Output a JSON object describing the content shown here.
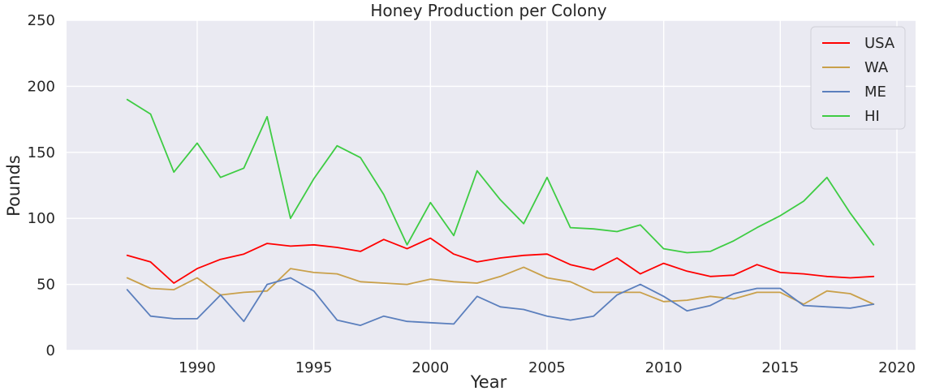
{
  "chart_data": {
    "type": "line",
    "title": "Honey Production per Colony",
    "xlabel": "Year",
    "ylabel": "Pounds",
    "xlim": [
      1984.4,
      2020.8
    ],
    "ylim": [
      0,
      250
    ],
    "xticks": [
      1990,
      1995,
      2000,
      2005,
      2010,
      2015,
      2020
    ],
    "yticks": [
      0,
      50,
      100,
      150,
      200,
      250
    ],
    "grid": true,
    "legend_position": "top-right",
    "x": [
      1987,
      1988,
      1989,
      1990,
      1991,
      1992,
      1993,
      1994,
      1995,
      1996,
      1997,
      1998,
      1999,
      2000,
      2001,
      2002,
      2003,
      2004,
      2005,
      2006,
      2007,
      2008,
      2009,
      2010,
      2011,
      2012,
      2013,
      2014,
      2015,
      2016,
      2017,
      2018,
      2019
    ],
    "series": [
      {
        "name": "USA",
        "color": "#ff0000",
        "values": [
          72,
          67,
          51,
          62,
          69,
          73,
          81,
          79,
          80,
          78,
          75,
          84,
          77,
          85,
          73,
          67,
          70,
          72,
          73,
          65,
          61,
          70,
          58,
          66,
          60,
          56,
          57,
          65,
          59,
          58,
          56,
          55,
          56
        ]
      },
      {
        "name": "WA",
        "color": "#c9a04a",
        "values": [
          55,
          47,
          46,
          55,
          42,
          44,
          45,
          62,
          59,
          58,
          52,
          51,
          50,
          54,
          52,
          51,
          56,
          63,
          55,
          52,
          44,
          44,
          44,
          37,
          38,
          41,
          39,
          44,
          44,
          35,
          45,
          43,
          35
        ]
      },
      {
        "name": "ME",
        "color": "#5b7fbd",
        "values": [
          46,
          26,
          24,
          24,
          42,
          22,
          50,
          55,
          45,
          23,
          19,
          26,
          22,
          21,
          20,
          41,
          33,
          31,
          26,
          23,
          26,
          42,
          50,
          41,
          30,
          34,
          43,
          47,
          47,
          34,
          33,
          32,
          35
        ]
      },
      {
        "name": "HI",
        "color": "#3ecc43",
        "values": [
          190,
          179,
          135,
          157,
          131,
          138,
          177,
          100,
          130,
          155,
          146,
          118,
          80,
          112,
          87,
          136,
          114,
          96,
          131,
          93,
          92,
          90,
          95,
          77,
          74,
          75,
          83,
          93,
          102,
          113,
          131,
          104,
          80
        ]
      }
    ]
  }
}
